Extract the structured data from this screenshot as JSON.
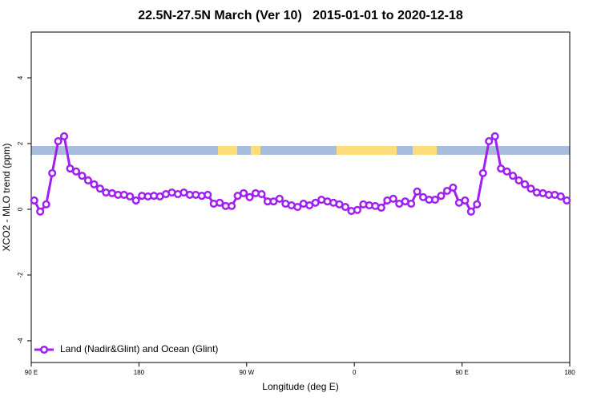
{
  "chart_data": {
    "type": "line",
    "title": "22.5N-27.5N March (Ver 10)   2015-01-01 to 2020-12-18",
    "x_label": "Longitude (deg E)",
    "y_label": "XCO2 - MLO trend (ppm)",
    "xlim": [
      90,
      540
    ],
    "xticks": [
      {
        "value": 90,
        "label": "90 E"
      },
      180,
      {
        "value": 270,
        "label": "90 W"
      },
      {
        "value": 360,
        "label": "0"
      },
      {
        "value": 450,
        "label": "90 E"
      },
      {
        "value": 540,
        "label": "180"
      }
    ],
    "ylim": [
      -4.66,
      5.39
    ],
    "yticks": [
      -4,
      -2,
      0,
      2,
      4
    ],
    "legend": "bottomleft",
    "x": [
      92.5,
      97.5,
      102.5,
      107.5,
      112.5,
      117.5,
      122.5,
      127.5,
      132.5,
      137.5,
      142.5,
      147.5,
      152.5,
      157.5,
      162.5,
      167.5,
      172.5,
      177.5,
      182.5,
      187.5,
      192.5,
      197.5,
      202.5,
      207.5,
      212.5,
      217.5,
      222.5,
      227.5,
      232.5,
      237.5,
      242.5,
      247.5,
      252.5,
      257.5,
      262.5,
      267.5,
      272.5,
      277.5,
      282.5,
      287.5,
      292.5,
      297.5,
      302.5,
      307.5,
      312.5,
      317.5,
      322.5,
      327.5,
      332.5,
      337.5,
      342.5,
      347.5,
      352.5,
      357.5,
      362.5,
      367.5,
      372.5,
      377.5,
      382.5,
      387.5,
      392.5,
      397.5,
      402.5,
      407.5,
      412.5,
      417.5,
      422.5,
      427.5,
      432.5,
      437.5,
      442.5,
      447.5,
      452.5,
      457.5,
      462.5,
      467.5,
      472.5,
      477.5,
      482.5,
      487.5,
      492.5,
      497.5,
      502.5,
      507.5,
      512.5,
      517.5,
      522.5,
      527.5,
      532.5,
      537.5
    ],
    "series": [
      {
        "name": "Land (Nadir&Glint) and Ocean (Glint)",
        "color": "#a020f0",
        "values": [
          0.27,
          -0.07,
          0.15,
          1.1,
          2.07,
          2.22,
          1.24,
          1.15,
          1.02,
          0.88,
          0.76,
          0.63,
          0.51,
          0.49,
          0.44,
          0.44,
          0.39,
          0.27,
          0.41,
          0.39,
          0.41,
          0.39,
          0.46,
          0.51,
          0.46,
          0.51,
          0.44,
          0.44,
          0.41,
          0.44,
          0.17,
          0.2,
          0.1,
          0.1,
          0.41,
          0.49,
          0.37,
          0.49,
          0.46,
          0.24,
          0.24,
          0.32,
          0.17,
          0.12,
          0.07,
          0.17,
          0.12,
          0.2,
          0.29,
          0.24,
          0.2,
          0.15,
          0.07,
          -0.05,
          -0.02,
          0.15,
          0.12,
          0.1,
          0.05,
          0.27,
          0.32,
          0.17,
          0.24,
          0.17,
          0.54,
          0.37,
          0.29,
          0.29,
          0.41,
          0.56,
          0.66,
          0.2,
          0.27,
          -0.07,
          0.15,
          1.1,
          2.07,
          2.22,
          1.24,
          1.15,
          1.02,
          0.88,
          0.76,
          0.63,
          0.51,
          0.49,
          0.44,
          0.44,
          0.39,
          0.27
        ]
      }
    ]
  }
}
